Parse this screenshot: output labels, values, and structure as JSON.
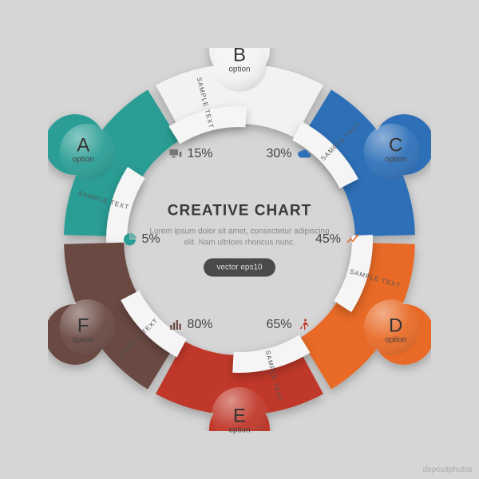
{
  "type": "infographic",
  "title": "CREATIVE CHART",
  "subtitle": "Lorem ipsum dolor sit amet, consectetur adipiscing elit. Nam ultrices rhoncus nunc.",
  "badge": "vector eps10",
  "background_color": "#d6d6d6",
  "ring": {
    "outer_radius": 220,
    "inner_radius": 145,
    "bump_radius": 38,
    "gap_deg": 3
  },
  "segments": [
    {
      "id": "A",
      "letter": "A",
      "option": "option",
      "sample": "SAMPLE TEXT",
      "color": "#2a9d94",
      "angle_center": -60,
      "pct": "5%",
      "icon": "pie",
      "icon_color": "#2a9d94"
    },
    {
      "id": "B",
      "letter": "B",
      "option": "option",
      "sample": "SAMPLE TEXT",
      "color": "#f2f2f2",
      "angle_center": 0,
      "pct": "15%",
      "icon": "monitor",
      "icon_color": "#777777"
    },
    {
      "id": "C",
      "letter": "C",
      "option": "option",
      "sample": "SAMPLE TEXT",
      "color": "#2f6fb8",
      "angle_center": 60,
      "pct": "30%",
      "icon": "cloud",
      "icon_color": "#2f6fb8"
    },
    {
      "id": "D",
      "letter": "D",
      "option": "option",
      "sample": "SAMPLE TEXT",
      "color": "#e86a28",
      "angle_center": 120,
      "pct": "45%",
      "icon": "growth",
      "icon_color": "#e86a28"
    },
    {
      "id": "E",
      "letter": "E",
      "option": "option",
      "sample": "SAMPLE TEXT",
      "color": "#c0392b",
      "angle_center": 180,
      "pct": "65%",
      "icon": "run",
      "icon_color": "#c0392b"
    },
    {
      "id": "F",
      "letter": "F",
      "option": "option",
      "sample": "SAMPLE TEXT",
      "color": "#6a4a42",
      "angle_center": 240,
      "pct": "80%",
      "icon": "bars",
      "icon_color": "#6a4a42"
    }
  ],
  "center_text_color": "#3a3a3a",
  "title_fontsize": 19,
  "body_fontsize": 10,
  "watermark": "depositphotos"
}
